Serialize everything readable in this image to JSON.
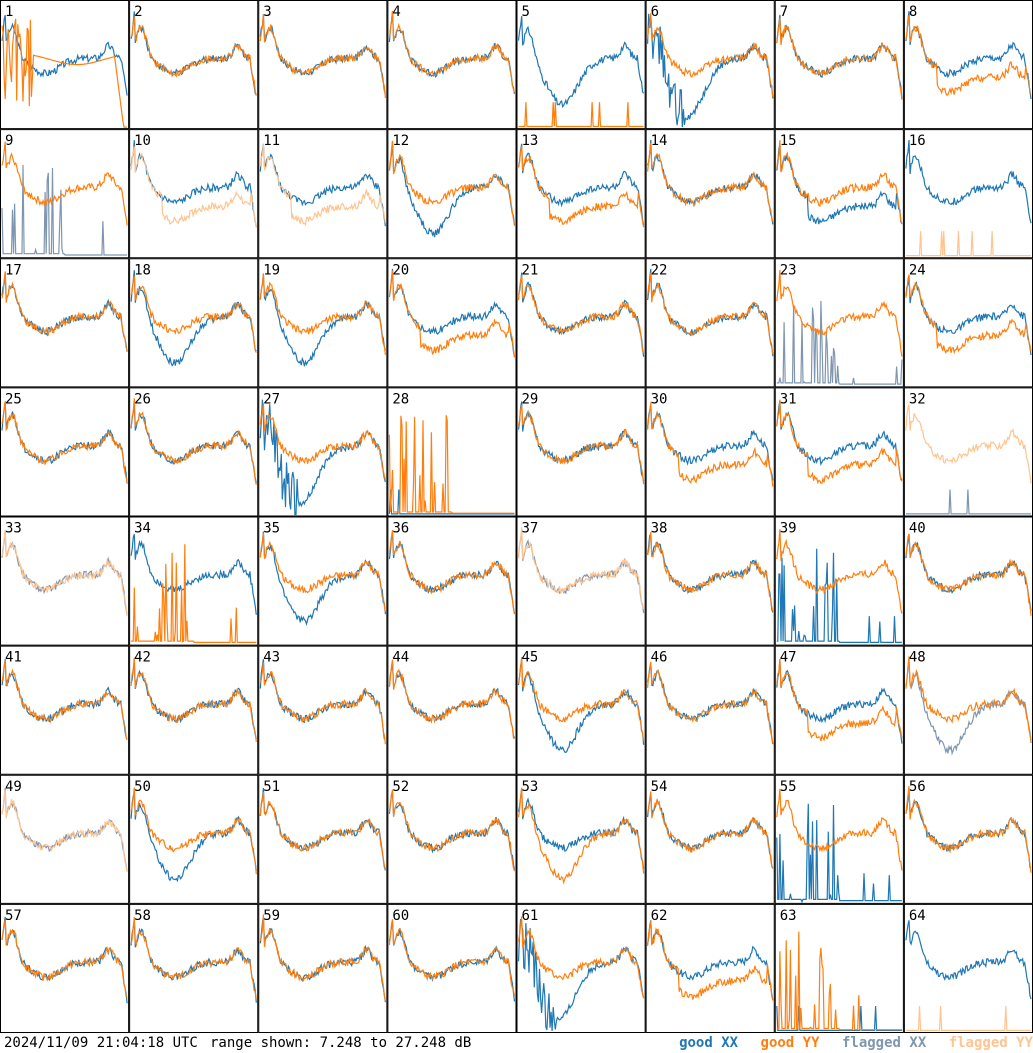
{
  "chart_data": {
    "type": "line",
    "layout": "small-multiples 8x8",
    "timestamp": "2024/11/09 21:04:18 UTC",
    "range_text": "range shown: 7.248 to 27.248 dB",
    "ylim": [
      7.248,
      27.248
    ],
    "units": "dB",
    "colors": {
      "good_xx": "#1f77b4",
      "good_yy": "#ff7f0e",
      "flagged_xx": "#7f96b0",
      "flagged_yy": "#ffc48f"
    },
    "legend": [
      {
        "key": "good_xx",
        "label": "good XX"
      },
      {
        "key": "good_yy",
        "label": "good YY"
      },
      {
        "key": "flagged_xx",
        "label": "flagged XX"
      },
      {
        "key": "flagged_yy",
        "label": "flagged YY"
      }
    ],
    "tiles": [
      {
        "n": "1",
        "xx": {
          "s": "good",
          "p": "std"
        },
        "yy": {
          "s": "good",
          "p": "edge_crash"
        }
      },
      {
        "n": "2",
        "xx": {
          "s": "good",
          "p": "std"
        },
        "yy": {
          "s": "good",
          "p": "std"
        }
      },
      {
        "n": "3",
        "xx": {
          "s": "good",
          "p": "std"
        },
        "yy": {
          "s": "good",
          "p": "std"
        }
      },
      {
        "n": "4",
        "xx": {
          "s": "good",
          "p": "std"
        },
        "yy": {
          "s": "good",
          "p": "std"
        }
      },
      {
        "n": "5",
        "xx": {
          "s": "good",
          "p": "dip"
        },
        "yy": {
          "s": "good",
          "p": "dead"
        }
      },
      {
        "n": "6",
        "xx": {
          "s": "good",
          "p": "noisy_dip"
        },
        "yy": {
          "s": "good",
          "p": "std"
        }
      },
      {
        "n": "7",
        "xx": {
          "s": "good",
          "p": "std"
        },
        "yy": {
          "s": "good",
          "p": "std"
        }
      },
      {
        "n": "8",
        "xx": {
          "s": "good",
          "p": "std"
        },
        "yy": {
          "s": "good",
          "p": "lowmid"
        }
      },
      {
        "n": "9",
        "xx": {
          "s": "flagged",
          "p": "spikes"
        },
        "yy": {
          "s": "good",
          "p": "std"
        }
      },
      {
        "n": "10",
        "xx": {
          "s": "good",
          "p": "std"
        },
        "yy": {
          "s": "flagged",
          "p": "lowmid"
        }
      },
      {
        "n": "11",
        "xx": {
          "s": "good",
          "p": "std"
        },
        "yy": {
          "s": "flagged",
          "p": "lowmid"
        }
      },
      {
        "n": "12",
        "xx": {
          "s": "good",
          "p": "dip"
        },
        "yy": {
          "s": "good",
          "p": "std"
        }
      },
      {
        "n": "13",
        "xx": {
          "s": "good",
          "p": "std"
        },
        "yy": {
          "s": "good",
          "p": "lowmid"
        }
      },
      {
        "n": "14",
        "xx": {
          "s": "good",
          "p": "std"
        },
        "yy": {
          "s": "good",
          "p": "std"
        }
      },
      {
        "n": "15",
        "xx": {
          "s": "good",
          "p": "lowmid"
        },
        "yy": {
          "s": "good",
          "p": "std"
        }
      },
      {
        "n": "16",
        "xx": {
          "s": "good",
          "p": "std"
        },
        "yy": {
          "s": "flagged",
          "p": "dead"
        }
      },
      {
        "n": "17",
        "xx": {
          "s": "good",
          "p": "std"
        },
        "yy": {
          "s": "good",
          "p": "std"
        }
      },
      {
        "n": "18",
        "xx": {
          "s": "good",
          "p": "dip"
        },
        "yy": {
          "s": "good",
          "p": "std"
        }
      },
      {
        "n": "19",
        "xx": {
          "s": "good",
          "p": "dip"
        },
        "yy": {
          "s": "good",
          "p": "std"
        }
      },
      {
        "n": "20",
        "xx": {
          "s": "good",
          "p": "std"
        },
        "yy": {
          "s": "good",
          "p": "lowmid"
        }
      },
      {
        "n": "21",
        "xx": {
          "s": "good",
          "p": "std"
        },
        "yy": {
          "s": "good",
          "p": "std"
        }
      },
      {
        "n": "22",
        "xx": {
          "s": "good",
          "p": "std"
        },
        "yy": {
          "s": "good",
          "p": "std"
        }
      },
      {
        "n": "23",
        "xx": {
          "s": "flagged",
          "p": "spikes"
        },
        "yy": {
          "s": "good",
          "p": "std"
        }
      },
      {
        "n": "24",
        "xx": {
          "s": "good",
          "p": "std"
        },
        "yy": {
          "s": "good",
          "p": "lowmid"
        }
      },
      {
        "n": "25",
        "xx": {
          "s": "good",
          "p": "std"
        },
        "yy": {
          "s": "good",
          "p": "std"
        }
      },
      {
        "n": "26",
        "xx": {
          "s": "good",
          "p": "std"
        },
        "yy": {
          "s": "good",
          "p": "std"
        }
      },
      {
        "n": "27",
        "xx": {
          "s": "good",
          "p": "noisy_dip"
        },
        "yy": {
          "s": "good",
          "p": "std"
        }
      },
      {
        "n": "28",
        "xx": {
          "s": "good",
          "p": "dead"
        },
        "yy": {
          "s": "good",
          "p": "spikes"
        }
      },
      {
        "n": "29",
        "xx": {
          "s": "good",
          "p": "std"
        },
        "yy": {
          "s": "good",
          "p": "std"
        }
      },
      {
        "n": "30",
        "xx": {
          "s": "good",
          "p": "std"
        },
        "yy": {
          "s": "good",
          "p": "lowmid"
        }
      },
      {
        "n": "31",
        "xx": {
          "s": "good",
          "p": "std"
        },
        "yy": {
          "s": "good",
          "p": "lowmid"
        }
      },
      {
        "n": "32",
        "xx": {
          "s": "flagged",
          "p": "dead"
        },
        "yy": {
          "s": "flagged",
          "p": "std"
        }
      },
      {
        "n": "33",
        "xx": {
          "s": "flagged",
          "p": "std"
        },
        "yy": {
          "s": "flagged",
          "p": "std"
        }
      },
      {
        "n": "34",
        "xx": {
          "s": "good",
          "p": "std"
        },
        "yy": {
          "s": "good",
          "p": "spikes"
        }
      },
      {
        "n": "35",
        "xx": {
          "s": "good",
          "p": "dip"
        },
        "yy": {
          "s": "good",
          "p": "std"
        }
      },
      {
        "n": "36",
        "xx": {
          "s": "good",
          "p": "std"
        },
        "yy": {
          "s": "good",
          "p": "std"
        }
      },
      {
        "n": "37",
        "xx": {
          "s": "flagged",
          "p": "std"
        },
        "yy": {
          "s": "flagged",
          "p": "std"
        }
      },
      {
        "n": "38",
        "xx": {
          "s": "good",
          "p": "std"
        },
        "yy": {
          "s": "good",
          "p": "std"
        }
      },
      {
        "n": "39",
        "xx": {
          "s": "good",
          "p": "spikes"
        },
        "yy": {
          "s": "good",
          "p": "std"
        }
      },
      {
        "n": "40",
        "xx": {
          "s": "good",
          "p": "std"
        },
        "yy": {
          "s": "good",
          "p": "std"
        }
      },
      {
        "n": "41",
        "xx": {
          "s": "good",
          "p": "std"
        },
        "yy": {
          "s": "good",
          "p": "std"
        }
      },
      {
        "n": "42",
        "xx": {
          "s": "good",
          "p": "std"
        },
        "yy": {
          "s": "good",
          "p": "std"
        }
      },
      {
        "n": "43",
        "xx": {
          "s": "good",
          "p": "std"
        },
        "yy": {
          "s": "good",
          "p": "std"
        }
      },
      {
        "n": "44",
        "xx": {
          "s": "good",
          "p": "std"
        },
        "yy": {
          "s": "good",
          "p": "std"
        }
      },
      {
        "n": "45",
        "xx": {
          "s": "good",
          "p": "dip"
        },
        "yy": {
          "s": "good",
          "p": "std"
        }
      },
      {
        "n": "46",
        "xx": {
          "s": "good",
          "p": "std"
        },
        "yy": {
          "s": "good",
          "p": "std"
        }
      },
      {
        "n": "47",
        "xx": {
          "s": "good",
          "p": "std"
        },
        "yy": {
          "s": "good",
          "p": "lowmid"
        }
      },
      {
        "n": "48",
        "xx": {
          "s": "flagged",
          "p": "dip"
        },
        "yy": {
          "s": "good",
          "p": "std"
        }
      },
      {
        "n": "49",
        "xx": {
          "s": "flagged",
          "p": "std"
        },
        "yy": {
          "s": "flagged",
          "p": "std"
        }
      },
      {
        "n": "50",
        "xx": {
          "s": "good",
          "p": "dip"
        },
        "yy": {
          "s": "good",
          "p": "std"
        }
      },
      {
        "n": "51",
        "xx": {
          "s": "good",
          "p": "std"
        },
        "yy": {
          "s": "good",
          "p": "std"
        }
      },
      {
        "n": "52",
        "xx": {
          "s": "good",
          "p": "std"
        },
        "yy": {
          "s": "good",
          "p": "std"
        }
      },
      {
        "n": "53",
        "xx": {
          "s": "good",
          "p": "std"
        },
        "yy": {
          "s": "good",
          "p": "dip"
        }
      },
      {
        "n": "54",
        "xx": {
          "s": "good",
          "p": "std"
        },
        "yy": {
          "s": "good",
          "p": "std"
        }
      },
      {
        "n": "55",
        "xx": {
          "s": "good",
          "p": "spikes"
        },
        "yy": {
          "s": "good",
          "p": "std"
        }
      },
      {
        "n": "56",
        "xx": {
          "s": "good",
          "p": "std"
        },
        "yy": {
          "s": "good",
          "p": "std"
        }
      },
      {
        "n": "57",
        "xx": {
          "s": "good",
          "p": "std"
        },
        "yy": {
          "s": "good",
          "p": "std"
        }
      },
      {
        "n": "58",
        "xx": {
          "s": "good",
          "p": "std"
        },
        "yy": {
          "s": "good",
          "p": "std"
        }
      },
      {
        "n": "59",
        "xx": {
          "s": "good",
          "p": "std"
        },
        "yy": {
          "s": "good",
          "p": "std"
        }
      },
      {
        "n": "60",
        "xx": {
          "s": "good",
          "p": "std"
        },
        "yy": {
          "s": "good",
          "p": "std"
        }
      },
      {
        "n": "61",
        "xx": {
          "s": "good",
          "p": "noisy_dip"
        },
        "yy": {
          "s": "good",
          "p": "std"
        }
      },
      {
        "n": "62",
        "xx": {
          "s": "good",
          "p": "std"
        },
        "yy": {
          "s": "good",
          "p": "lowmid"
        }
      },
      {
        "n": "63",
        "xx": {
          "s": "good",
          "p": "dead"
        },
        "yy": {
          "s": "good",
          "p": "spikes"
        }
      },
      {
        "n": "64",
        "xx": {
          "s": "good",
          "p": "std"
        },
        "yy": {
          "s": "flagged",
          "p": "dead"
        }
      }
    ]
  }
}
